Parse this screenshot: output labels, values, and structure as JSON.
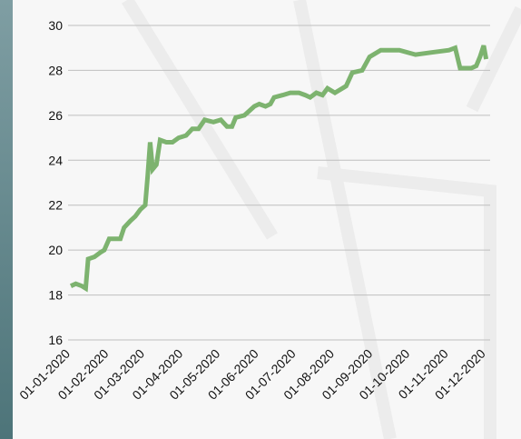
{
  "chart_data": {
    "type": "line",
    "x": [
      "2020-01-01",
      "2020-01-05",
      "2020-01-10",
      "2020-01-13",
      "2020-01-15",
      "2020-01-20",
      "2020-01-25",
      "2020-01-28",
      "2020-02-01",
      "2020-02-05",
      "2020-02-10",
      "2020-02-13",
      "2020-02-18",
      "2020-02-22",
      "2020-02-26",
      "2020-03-01",
      "2020-03-03",
      "2020-03-05",
      "2020-03-07",
      "2020-03-10",
      "2020-03-13",
      "2020-03-18",
      "2020-03-23",
      "2020-03-28",
      "2020-04-03",
      "2020-04-08",
      "2020-04-13",
      "2020-04-18",
      "2020-04-25",
      "2020-05-01",
      "2020-05-06",
      "2020-05-10",
      "2020-05-13",
      "2020-05-20",
      "2020-05-28",
      "2020-06-01",
      "2020-06-06",
      "2020-06-10",
      "2020-06-13",
      "2020-06-20",
      "2020-06-26",
      "2020-07-03",
      "2020-07-08",
      "2020-07-12",
      "2020-07-17",
      "2020-07-22",
      "2020-07-26",
      "2020-08-01",
      "2020-08-10",
      "2020-08-15",
      "2020-08-23",
      "2020-08-29",
      "2020-09-07",
      "2020-09-22",
      "2020-10-05",
      "2020-10-18",
      "2020-11-01",
      "2020-11-06",
      "2020-11-10",
      "2020-11-19",
      "2020-11-23",
      "2020-11-26",
      "2020-11-29",
      "2020-12-01"
    ],
    "series": [
      {
        "color": "#7db36f",
        "values": [
          18.4,
          18.5,
          18.4,
          18.3,
          19.6,
          19.7,
          19.9,
          20.0,
          20.5,
          20.5,
          20.5,
          21.0,
          21.3,
          21.5,
          21.8,
          22.0,
          23.3,
          24.8,
          23.6,
          23.8,
          24.9,
          24.8,
          24.8,
          25.0,
          25.1,
          25.4,
          25.4,
          25.8,
          25.7,
          25.8,
          25.5,
          25.5,
          25.9,
          26.0,
          26.4,
          26.5,
          26.4,
          26.5,
          26.8,
          26.9,
          27.0,
          27.0,
          26.9,
          26.8,
          27.0,
          26.9,
          27.2,
          27.0,
          27.3,
          27.9,
          28.0,
          28.6,
          28.9,
          28.9,
          28.7,
          28.8,
          28.9,
          29.0,
          28.1,
          28.1,
          28.2,
          28.6,
          29.1,
          28.5
        ]
      }
    ],
    "xlim": [
      "2020-01-01",
      "2020-12-02"
    ],
    "xticks": [
      {
        "value": "2020-01-01",
        "label": "01-01-2020"
      },
      {
        "value": "2020-02-01",
        "label": "01-02-2020"
      },
      {
        "value": "2020-03-01",
        "label": "01-03-2020"
      },
      {
        "value": "2020-04-01",
        "label": "01-04-2020"
      },
      {
        "value": "2020-05-01",
        "label": "01-05-2020"
      },
      {
        "value": "2020-06-01",
        "label": "01-06-2020"
      },
      {
        "value": "2020-07-01",
        "label": "01-07-2020"
      },
      {
        "value": "2020-08-01",
        "label": "01-08-2020"
      },
      {
        "value": "2020-09-01",
        "label": "01-09-2020"
      },
      {
        "value": "2020-10-01",
        "label": "01-10-2020"
      },
      {
        "value": "2020-11-01",
        "label": "01-11-2020"
      },
      {
        "value": "2020-12-01",
        "label": "01-12-2020"
      }
    ],
    "ylim": [
      16,
      30
    ],
    "yticks": [
      16,
      18,
      20,
      22,
      24,
      26,
      28,
      30
    ],
    "grid": true
  }
}
